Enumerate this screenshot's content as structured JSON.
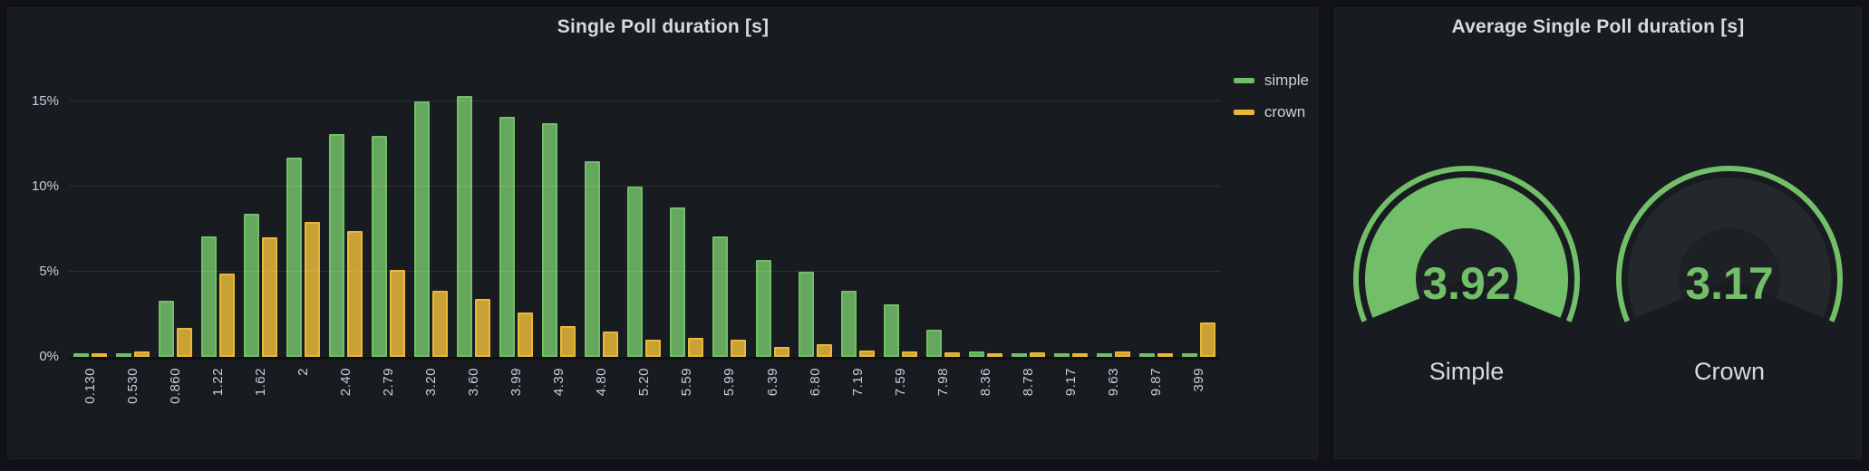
{
  "colors": {
    "green": "#73BF69",
    "yellow": "#EAB839",
    "panel_bg": "#181B1F",
    "page_bg": "#111217",
    "empty_arc": "#24272C",
    "gauge_face": "#1D2024",
    "text": "#CCCCDC",
    "title_text": "#D8D9DA"
  },
  "chart_data": [
    {
      "type": "bar",
      "title": "Single Poll duration [s]",
      "categories": [
        "0.130",
        "0.530",
        "0.860",
        "1.22",
        "1.62",
        "2",
        "2.40",
        "2.79",
        "3.20",
        "3.60",
        "3.99",
        "4.39",
        "4.80",
        "5.20",
        "5.59",
        "5.99",
        "6.39",
        "6.80",
        "7.19",
        "7.59",
        "7.98",
        "8.36",
        "8.78",
        "9.17",
        "9.63",
        "9.87",
        "399"
      ],
      "series": [
        {
          "name": "simple",
          "color": "#73BF69",
          "values": [
            0.2,
            0.2,
            3.3,
            7.1,
            8.4,
            11.7,
            13.1,
            13.0,
            15.0,
            15.3,
            14.1,
            13.7,
            11.5,
            10.0,
            8.8,
            7.1,
            5.7,
            5.0,
            3.9,
            3.1,
            1.6,
            0.3,
            0.15,
            0.1,
            0.1,
            0.1,
            0.15
          ]
        },
        {
          "name": "crown",
          "color": "#EAB839",
          "values": [
            0.1,
            0.3,
            1.7,
            4.9,
            7.0,
            7.9,
            7.4,
            5.1,
            3.9,
            3.4,
            2.6,
            1.8,
            1.5,
            1.0,
            1.1,
            1.0,
            0.6,
            0.75,
            0.35,
            0.3,
            0.25,
            0.2,
            0.25,
            0.15,
            0.3,
            0.2,
            2.0
          ]
        }
      ],
      "xlabel": "",
      "ylabel": "",
      "y_unit": "%",
      "ylim": [
        0,
        17.7
      ],
      "y_ticks": [
        {
          "value": 0,
          "label": "0%"
        },
        {
          "value": 5,
          "label": "5%"
        },
        {
          "value": 10,
          "label": "10%"
        },
        {
          "value": 15,
          "label": "15%"
        }
      ],
      "grid": true,
      "legend_position": "top-right"
    },
    {
      "type": "gauge",
      "title": "Average Single Poll duration [s]",
      "items": [
        {
          "label": "Simple",
          "value": "3.92",
          "numeric_value": 3.92,
          "fill": "full",
          "color": "#73BF69"
        },
        {
          "label": "Crown",
          "value": "3.17",
          "numeric_value": 3.17,
          "fill": "empty",
          "color": "#73BF69"
        }
      ]
    }
  ]
}
